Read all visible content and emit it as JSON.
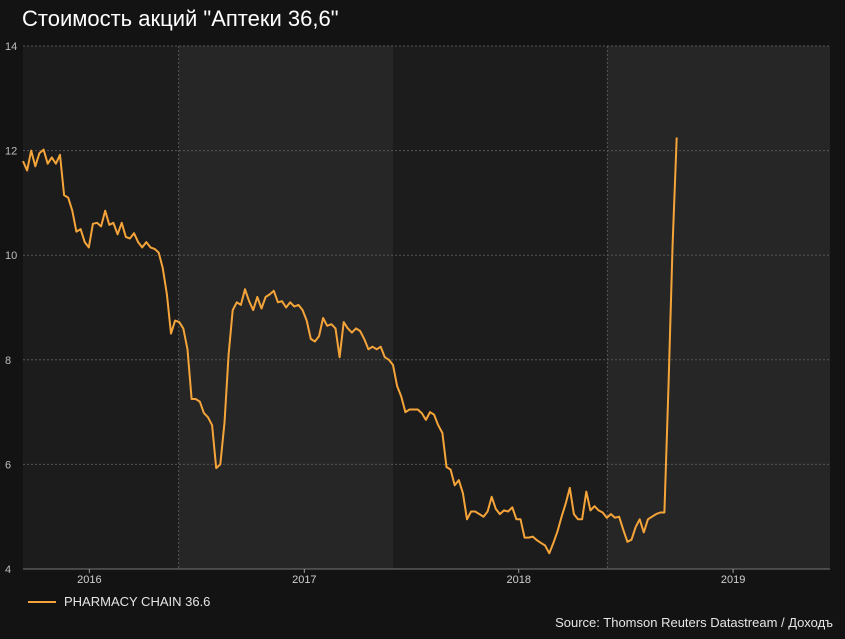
{
  "chart_data": {
    "type": "line",
    "title": "Стоимость акций \"Аптеки 36,6\"",
    "xlabel": "",
    "ylabel": "",
    "ylim": [
      4,
      14
    ],
    "yticks": [
      4,
      6,
      8,
      10,
      12,
      14
    ],
    "xlim": [
      "2015-09-10",
      "2019-06-15"
    ],
    "xticks": [
      {
        "label": "2016",
        "date": "2016-01-01"
      },
      {
        "label": "2017",
        "date": "2017-01-01"
      },
      {
        "label": "2018",
        "date": "2018-01-01"
      },
      {
        "label": "2019",
        "date": "2019-01-01"
      }
    ],
    "grid": true,
    "shaded_bands": [
      {
        "start": "2016-06-01",
        "end": "2017-06-01"
      },
      {
        "start": "2018-06-01",
        "end": "2019-06-15"
      }
    ],
    "legend_position": "bottom-left",
    "series": [
      {
        "name": "PHARMACY CHAIN 36.6",
        "color": "#f5a43a",
        "points": [
          [
            "2015-09-10",
            11.8
          ],
          [
            "2015-09-17",
            11.62
          ],
          [
            "2015-09-24",
            12.0
          ],
          [
            "2015-10-01",
            11.7
          ],
          [
            "2015-10-08",
            11.95
          ],
          [
            "2015-10-15",
            12.02
          ],
          [
            "2015-10-22",
            11.75
          ],
          [
            "2015-10-29",
            11.87
          ],
          [
            "2015-11-05",
            11.75
          ],
          [
            "2015-11-12",
            11.92
          ],
          [
            "2015-11-19",
            11.15
          ],
          [
            "2015-11-26",
            11.1
          ],
          [
            "2015-12-03",
            10.85
          ],
          [
            "2015-12-10",
            10.45
          ],
          [
            "2015-12-17",
            10.5
          ],
          [
            "2015-12-24",
            10.25
          ],
          [
            "2015-12-31",
            10.15
          ],
          [
            "2016-01-07",
            10.6
          ],
          [
            "2016-01-14",
            10.62
          ],
          [
            "2016-01-21",
            10.55
          ],
          [
            "2016-01-28",
            10.85
          ],
          [
            "2016-02-04",
            10.58
          ],
          [
            "2016-02-11",
            10.62
          ],
          [
            "2016-02-18",
            10.4
          ],
          [
            "2016-02-25",
            10.62
          ],
          [
            "2016-03-03",
            10.35
          ],
          [
            "2016-03-10",
            10.32
          ],
          [
            "2016-03-17",
            10.42
          ],
          [
            "2016-03-24",
            10.25
          ],
          [
            "2016-03-31",
            10.15
          ],
          [
            "2016-04-07",
            10.25
          ],
          [
            "2016-04-14",
            10.15
          ],
          [
            "2016-04-21",
            10.12
          ],
          [
            "2016-04-28",
            10.05
          ],
          [
            "2016-05-05",
            9.75
          ],
          [
            "2016-05-12",
            9.25
          ],
          [
            "2016-05-19",
            8.5
          ],
          [
            "2016-05-26",
            8.75
          ],
          [
            "2016-06-02",
            8.72
          ],
          [
            "2016-06-09",
            8.6
          ],
          [
            "2016-06-16",
            8.2
          ],
          [
            "2016-06-23",
            7.25
          ],
          [
            "2016-06-30",
            7.25
          ],
          [
            "2016-07-07",
            7.2
          ],
          [
            "2016-07-14",
            6.98
          ],
          [
            "2016-07-21",
            6.9
          ],
          [
            "2016-07-28",
            6.75
          ],
          [
            "2016-08-04",
            5.93
          ],
          [
            "2016-08-11",
            6.0
          ],
          [
            "2016-08-18",
            6.8
          ],
          [
            "2016-08-25",
            8.1
          ],
          [
            "2016-09-01",
            8.95
          ],
          [
            "2016-09-08",
            9.1
          ],
          [
            "2016-09-15",
            9.05
          ],
          [
            "2016-09-22",
            9.35
          ],
          [
            "2016-09-29",
            9.12
          ],
          [
            "2016-10-06",
            8.95
          ],
          [
            "2016-10-13",
            9.2
          ],
          [
            "2016-10-20",
            8.98
          ],
          [
            "2016-10-27",
            9.2
          ],
          [
            "2016-11-03",
            9.25
          ],
          [
            "2016-11-10",
            9.32
          ],
          [
            "2016-11-17",
            9.1
          ],
          [
            "2016-11-24",
            9.12
          ],
          [
            "2016-12-01",
            9.0
          ],
          [
            "2016-12-08",
            9.1
          ],
          [
            "2016-12-15",
            9.02
          ],
          [
            "2016-12-22",
            9.05
          ],
          [
            "2016-12-29",
            8.95
          ],
          [
            "2017-01-05",
            8.75
          ],
          [
            "2017-01-12",
            8.4
          ],
          [
            "2017-01-19",
            8.35
          ],
          [
            "2017-01-26",
            8.45
          ],
          [
            "2017-02-02",
            8.8
          ],
          [
            "2017-02-09",
            8.65
          ],
          [
            "2017-02-16",
            8.68
          ],
          [
            "2017-02-23",
            8.6
          ],
          [
            "2017-03-02",
            8.05
          ],
          [
            "2017-03-09",
            8.72
          ],
          [
            "2017-03-16",
            8.6
          ],
          [
            "2017-03-23",
            8.52
          ],
          [
            "2017-03-30",
            8.6
          ],
          [
            "2017-04-06",
            8.55
          ],
          [
            "2017-04-13",
            8.4
          ],
          [
            "2017-04-20",
            8.2
          ],
          [
            "2017-04-27",
            8.25
          ],
          [
            "2017-05-04",
            8.2
          ],
          [
            "2017-05-11",
            8.25
          ],
          [
            "2017-05-18",
            8.05
          ],
          [
            "2017-05-25",
            8.0
          ],
          [
            "2017-06-01",
            7.9
          ],
          [
            "2017-06-08",
            7.5
          ],
          [
            "2017-06-15",
            7.3
          ],
          [
            "2017-06-22",
            7.0
          ],
          [
            "2017-06-29",
            7.05
          ],
          [
            "2017-07-06",
            7.05
          ],
          [
            "2017-07-13",
            7.05
          ],
          [
            "2017-07-20",
            6.98
          ],
          [
            "2017-07-27",
            6.85
          ],
          [
            "2017-08-03",
            7.0
          ],
          [
            "2017-08-10",
            6.95
          ],
          [
            "2017-08-17",
            6.75
          ],
          [
            "2017-08-24",
            6.6
          ],
          [
            "2017-08-31",
            5.95
          ],
          [
            "2017-09-07",
            5.9
          ],
          [
            "2017-09-14",
            5.6
          ],
          [
            "2017-09-21",
            5.7
          ],
          [
            "2017-09-28",
            5.45
          ],
          [
            "2017-10-05",
            4.95
          ],
          [
            "2017-10-12",
            5.1
          ],
          [
            "2017-10-19",
            5.1
          ],
          [
            "2017-10-26",
            5.05
          ],
          [
            "2017-11-02",
            5.0
          ],
          [
            "2017-11-09",
            5.1
          ],
          [
            "2017-11-16",
            5.38
          ],
          [
            "2017-11-23",
            5.15
          ],
          [
            "2017-11-30",
            5.05
          ],
          [
            "2017-12-07",
            5.12
          ],
          [
            "2017-12-14",
            5.1
          ],
          [
            "2017-12-21",
            5.18
          ],
          [
            "2017-12-28",
            4.95
          ],
          [
            "2018-01-04",
            4.95
          ],
          [
            "2018-01-11",
            4.6
          ],
          [
            "2018-01-18",
            4.6
          ],
          [
            "2018-01-25",
            4.62
          ],
          [
            "2018-02-01",
            4.55
          ],
          [
            "2018-02-08",
            4.5
          ],
          [
            "2018-02-15",
            4.45
          ],
          [
            "2018-02-22",
            4.3
          ],
          [
            "2018-03-01",
            4.5
          ],
          [
            "2018-03-08",
            4.72
          ],
          [
            "2018-03-15",
            5.0
          ],
          [
            "2018-03-22",
            5.25
          ],
          [
            "2018-03-29",
            5.55
          ],
          [
            "2018-04-05",
            5.05
          ],
          [
            "2018-04-12",
            4.95
          ],
          [
            "2018-04-19",
            4.95
          ],
          [
            "2018-04-26",
            5.48
          ],
          [
            "2018-05-03",
            5.12
          ],
          [
            "2018-05-10",
            5.2
          ],
          [
            "2018-05-17",
            5.12
          ],
          [
            "2018-05-24",
            5.08
          ],
          [
            "2018-05-31",
            4.98
          ],
          [
            "2018-06-07",
            5.05
          ],
          [
            "2018-06-14",
            4.98
          ],
          [
            "2018-06-21",
            5.0
          ],
          [
            "2018-06-28",
            4.75
          ],
          [
            "2018-07-05",
            4.52
          ],
          [
            "2018-07-12",
            4.56
          ],
          [
            "2018-07-19",
            4.8
          ],
          [
            "2018-07-26",
            4.95
          ],
          [
            "2018-08-02",
            4.7
          ],
          [
            "2018-08-09",
            4.95
          ],
          [
            "2018-08-16",
            5.0
          ],
          [
            "2018-08-23",
            5.05
          ],
          [
            "2018-08-30",
            5.08
          ],
          [
            "2018-09-06",
            5.08
          ],
          [
            "2018-09-13",
            7.5
          ],
          [
            "2018-09-20",
            10.2
          ],
          [
            "2018-09-27",
            12.25
          ]
        ]
      }
    ]
  },
  "legend": {
    "label": "PHARMACY CHAIN 36.6",
    "color": "#f5a43a"
  },
  "source": "Source: Thomson Reuters Datastream / Доходъ"
}
